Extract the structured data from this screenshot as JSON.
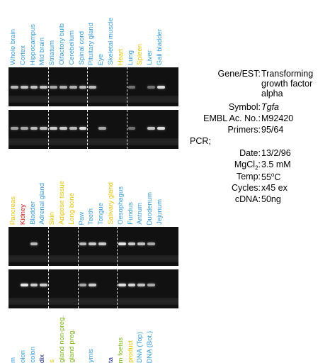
{
  "colors": {
    "blue": "#3a9bd6",
    "yellow": "#e8c200",
    "red": "#cc1b1b",
    "green": "#7cb518",
    "dark_blue": "#1a2a8a"
  },
  "panel1": {
    "lanes": [
      {
        "label": "Whole brain",
        "color": "blue"
      },
      {
        "label": "Cortex",
        "color": "blue"
      },
      {
        "label": "Hippocampus",
        "color": "blue"
      },
      {
        "label": "Mid brain",
        "color": "blue"
      },
      {
        "label": "Striatum",
        "color": "blue"
      },
      {
        "label": "Olfactory bulb",
        "color": "blue"
      },
      {
        "label": "Cerebellum",
        "color": "blue"
      },
      {
        "label": "Spinal cord",
        "color": "blue"
      },
      {
        "label": "Pituitary gland",
        "color": "blue"
      },
      {
        "label": "Eye",
        "color": "blue"
      },
      {
        "label": "Skeletal muscle",
        "color": "blue"
      },
      {
        "label": "Heart",
        "color": "yellow"
      },
      {
        "label": "Lung",
        "color": "blue"
      },
      {
        "label": "Spleen",
        "color": "yellow"
      },
      {
        "label": "Liver",
        "color": "blue"
      },
      {
        "label": "Gall bladder",
        "color": "blue"
      }
    ],
    "gel_top_intensity": [
      0.7,
      0.75,
      0.75,
      0.75,
      0.6,
      0.65,
      0.65,
      0.7,
      0.7,
      0,
      0,
      0,
      0.3,
      0,
      0.3,
      0.9
    ],
    "gel_bottom_intensity": [
      0.55,
      0.6,
      0.7,
      0.75,
      0.8,
      0.8,
      0.7,
      0.9,
      0,
      0.6,
      0,
      0,
      0.3,
      0,
      0.75,
      0.9
    ]
  },
  "panel2": {
    "lanes": [
      {
        "label": "Pancreas",
        "color": "yellow"
      },
      {
        "label": "Kidney",
        "color": "red"
      },
      {
        "label": "Bladder",
        "color": "blue"
      },
      {
        "label": "Adrenal gland",
        "color": "blue"
      },
      {
        "label": "Skin",
        "color": "yellow"
      },
      {
        "label": "Adipose tissue",
        "color": "yellow"
      },
      {
        "label": "Long bone",
        "color": "yellow"
      },
      {
        "label": "Paw",
        "color": "blue"
      },
      {
        "label": "Teeth",
        "color": "blue"
      },
      {
        "label": "Tongue",
        "color": "blue"
      },
      {
        "label": "Salivary gland",
        "color": "yellow"
      },
      {
        "label": "Oesophagus",
        "color": "blue"
      },
      {
        "label": "Fundus",
        "color": "blue"
      },
      {
        "label": "Antrum",
        "color": "blue"
      },
      {
        "label": "Duodenum",
        "color": "blue"
      },
      {
        "label": "Jejunum",
        "color": "blue"
      }
    ],
    "gel_top_intensity": [
      0,
      0,
      0.7,
      0,
      0,
      0,
      0,
      0.7,
      0.8,
      0.8,
      0,
      0.95,
      0.8,
      0.75,
      0.6,
      0
    ],
    "gel_bottom_intensity": [
      0,
      0.95,
      0.8,
      0.8,
      0,
      0,
      0,
      0.6,
      0.8,
      0,
      0,
      0.9,
      0.85,
      0.75,
      0.6,
      0
    ]
  },
  "panel3": {
    "lanes": [
      {
        "label": "m",
        "color": "blue"
      },
      {
        "label": "olon",
        "color": "blue"
      },
      {
        "label": "colon",
        "color": "blue"
      },
      {
        "label": "dix",
        "color": "dark_blue"
      },
      {
        "label": "s",
        "color": "yellow"
      },
      {
        "label": "gland non-preg.",
        "color": "green"
      },
      {
        "label": "gland preg.",
        "color": "green"
      },
      {
        "label": "",
        "color": "blue"
      },
      {
        "label": "ymis",
        "color": "blue"
      },
      {
        "label": "",
        "color": "blue"
      },
      {
        "label": "ta",
        "color": "dark_blue"
      },
      {
        "label": "m foetus",
        "color": "green"
      },
      {
        "label": "product",
        "color": "yellow"
      },
      {
        "label": "DNA (Top)",
        "color": "blue"
      },
      {
        "label": "DNA (Bot.)",
        "color": "blue"
      }
    ]
  },
  "info": {
    "gene_label": "Gene/EST:",
    "gene_value": [
      "Transforming",
      "growth factor",
      "alpha"
    ],
    "symbol_label": "Symbol:",
    "symbol_value": "Tgfa",
    "embl_label": "EMBL Ac. No.:",
    "embl_value": "M92420",
    "primers_label": "Primers:",
    "primers_value": "95/64",
    "pcr_label": "PCR;",
    "date_label": "Date:",
    "date_value": "13/2/96",
    "mgcl_label": "MgCl",
    "mgcl_sub": "2",
    "mgcl_colon": ":",
    "mgcl_value": "3.5 mM",
    "temp_label": "Temp:",
    "temp_value": "55",
    "temp_sup": "o",
    "temp_unit": "C",
    "cycles_label": "Cycles:",
    "cycles_value": "x45 ex",
    "cdna_label": "cDNA:",
    "cdna_value": "50ng"
  }
}
